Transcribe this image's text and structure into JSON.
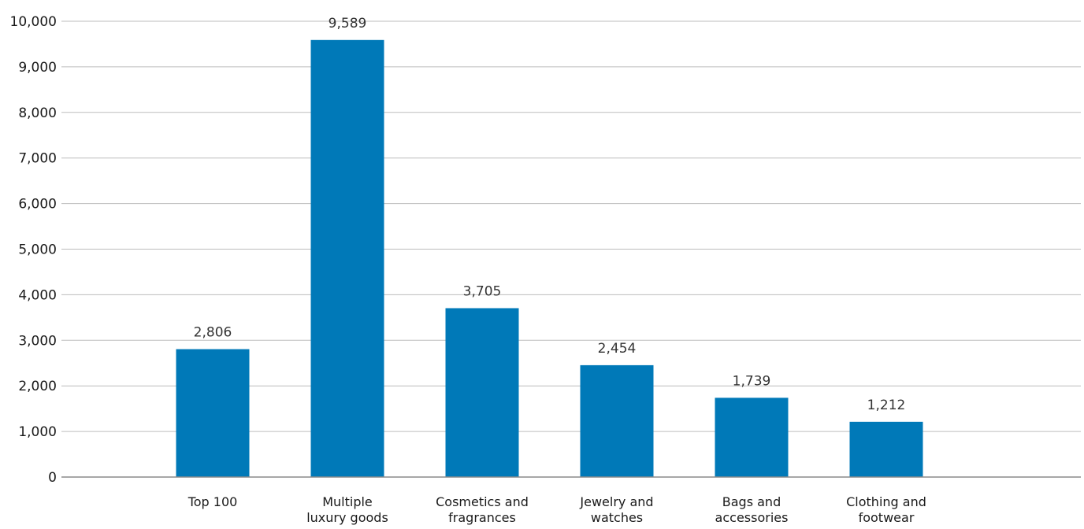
{
  "chart_data": {
    "type": "bar",
    "title": "",
    "xlabel": "",
    "ylabel": "",
    "ylim": [
      0,
      10000
    ],
    "yticks": [
      {
        "value": 0,
        "label": "0"
      },
      {
        "value": 1000,
        "label": "1,000"
      },
      {
        "value": 2000,
        "label": "2,000"
      },
      {
        "value": 3000,
        "label": "3,000"
      },
      {
        "value": 4000,
        "label": "4,000"
      },
      {
        "value": 5000,
        "label": "5,000"
      },
      {
        "value": 6000,
        "label": "6,000"
      },
      {
        "value": 7000,
        "label": "7,000"
      },
      {
        "value": 8000,
        "label": "8,000"
      },
      {
        "value": 9000,
        "label": "9,000"
      },
      {
        "value": 10000,
        "label": "10,000"
      }
    ],
    "grid": true,
    "bar_color": "#0079b8",
    "categories": [
      [
        "Top 100"
      ],
      [
        "Multiple",
        "luxury goods"
      ],
      [
        "Cosmetics and",
        "fragrances"
      ],
      [
        "Jewelry and",
        "watches"
      ],
      [
        "Bags and",
        "accessories"
      ],
      [
        "Clothing and",
        "footwear"
      ]
    ],
    "values": [
      2806,
      9589,
      3705,
      2454,
      1739,
      1212
    ],
    "value_labels": [
      "2,806",
      "9,589",
      "3,705",
      "2,454",
      "1,739",
      "1,212"
    ]
  }
}
